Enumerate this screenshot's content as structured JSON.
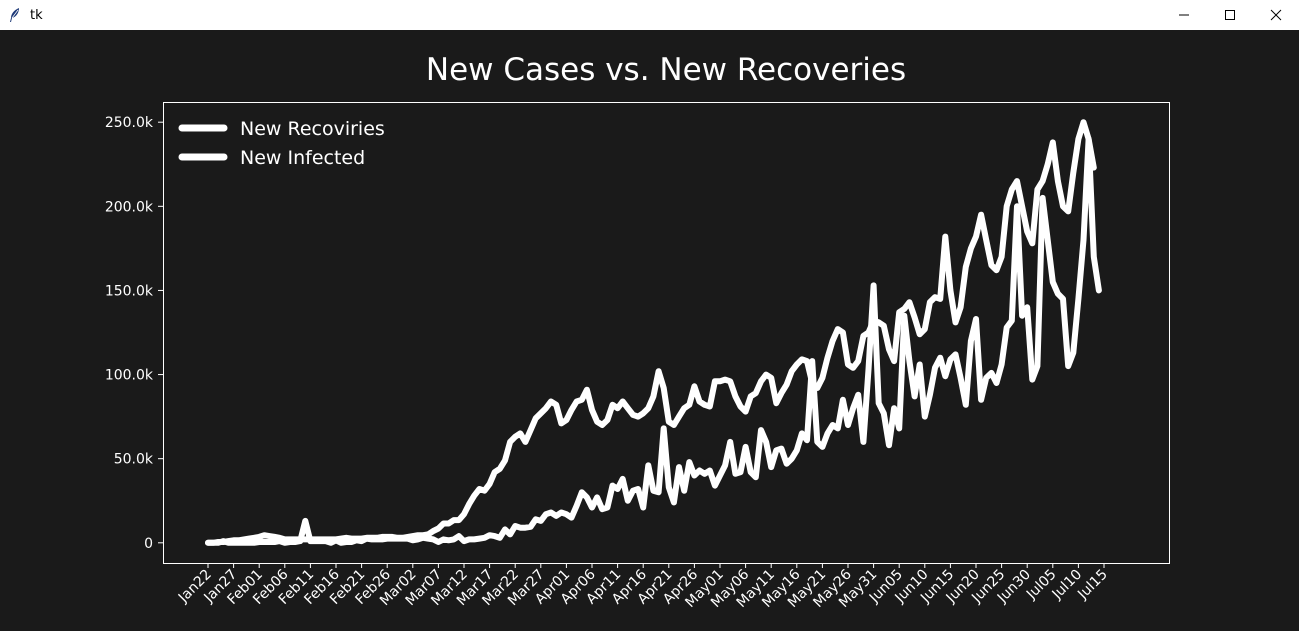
{
  "window": {
    "title": "tk",
    "icons": {
      "app": "feather-icon",
      "minimize": "minimize-icon",
      "maximize": "maximize-icon",
      "close": "close-icon"
    }
  },
  "colors": {
    "background": "#1a1a1a",
    "foreground": "#ffffff",
    "titlebar": "#ffffff"
  },
  "chart_data": {
    "type": "line",
    "title": "New Cases vs. New Recoveries",
    "xlabel": "",
    "ylabel": "",
    "x_tick_labels": [
      "Jan22",
      "Jan27",
      "Feb01",
      "Feb06",
      "Feb11",
      "Feb16",
      "Feb21",
      "Feb26",
      "Mar02",
      "Mar07",
      "Mar12",
      "Mar17",
      "Mar22",
      "Mar27",
      "Apr01",
      "Apr06",
      "Apr11",
      "Apr16",
      "Apr21",
      "Apr26",
      "May01",
      "May06",
      "May11",
      "May16",
      "May21",
      "May26",
      "May31",
      "Jun05",
      "Jun10",
      "Jun15",
      "Jun20",
      "Jun25",
      "Jun30",
      "Jul05",
      "Jul10",
      "Jul15"
    ],
    "y_tick_values": [
      0,
      50000,
      100000,
      150000,
      200000,
      250000
    ],
    "y_tick_labels": [
      "0",
      "50.0k",
      "100.0k",
      "150.0k",
      "200.0k",
      "250.0k"
    ],
    "ylim": [
      -12000,
      262000
    ],
    "grid": false,
    "legend_position": "top-left",
    "series": [
      {
        "name": "New Recoviries",
        "values": [
          0,
          0,
          0,
          1000,
          0,
          0,
          0,
          0,
          0,
          0,
          500,
          500,
          500,
          500,
          1000,
          0,
          500,
          500,
          1000,
          13000,
          1000,
          1000,
          1000,
          1000,
          0,
          1500,
          0,
          500,
          500,
          1500,
          1000,
          2500,
          2000,
          2000,
          2000,
          2500,
          2500,
          2500,
          2500,
          2500,
          1500,
          2000,
          3000,
          2500,
          2000,
          500,
          2000,
          1500,
          2000,
          4000,
          1000,
          2000,
          2000,
          2500,
          3000,
          4500,
          4000,
          3000,
          8000,
          5000,
          10000,
          9000,
          9000,
          9500,
          14000,
          13000,
          17000,
          18000,
          16000,
          18000,
          17000,
          15000,
          22000,
          30000,
          27000,
          21000,
          27000,
          20000,
          21000,
          34000,
          32000,
          38000,
          25000,
          31000,
          32000,
          21000,
          46000,
          31000,
          30000,
          68000,
          33000,
          24000,
          45000,
          31000,
          48000,
          40000,
          43000,
          41000,
          43000,
          34000,
          40000,
          46000,
          60000,
          41000,
          42000,
          57000,
          42000,
          39000,
          67000,
          60000,
          45000,
          55000,
          56000,
          47000,
          50000,
          55000,
          65000,
          61000,
          108000,
          60000,
          57000,
          65000,
          70000,
          68000,
          85000,
          70000,
          80000,
          88000,
          60000,
          103000,
          153000,
          83000,
          77000,
          58000,
          80000,
          68000,
          135000,
          108000,
          87000,
          106000,
          75000,
          88000,
          104000,
          110000,
          99000,
          109000,
          112000,
          98000,
          82000,
          120000,
          133000,
          85000,
          98000,
          101000,
          95000,
          106000,
          128000,
          132000,
          200000,
          135000,
          140000,
          97000,
          105000,
          205000,
          180000,
          155000,
          148000,
          145000,
          105000,
          113000,
          145000,
          180000,
          240000,
          170000,
          150000
        ]
      },
      {
        "name": "New Infected",
        "values": [
          0,
          0,
          500,
          500,
          1000,
          1500,
          1500,
          2000,
          2500,
          3000,
          3500,
          4500,
          4000,
          3500,
          3000,
          2000,
          2000,
          2000,
          2000,
          2000,
          2000,
          2000,
          2000,
          2000,
          2000,
          2000,
          2500,
          3000,
          2500,
          2500,
          2500,
          3000,
          3000,
          3000,
          3500,
          3500,
          3500,
          3000,
          3000,
          3500,
          4000,
          4500,
          4500,
          5000,
          7000,
          8500,
          11500,
          11500,
          13500,
          13500,
          17000,
          23000,
          28000,
          32000,
          31000,
          35000,
          42000,
          44000,
          49000,
          60000,
          63000,
          65000,
          60000,
          67000,
          74000,
          77000,
          80000,
          84000,
          82000,
          71000,
          73000,
          79000,
          84000,
          85000,
          91000,
          79000,
          72000,
          70000,
          73000,
          82000,
          80000,
          84000,
          80000,
          76000,
          75000,
          77000,
          80000,
          87000,
          102000,
          92000,
          72000,
          70000,
          75000,
          80000,
          82000,
          93000,
          84000,
          82000,
          81000,
          96000,
          96000,
          97000,
          96000,
          87000,
          81000,
          78000,
          87000,
          89000,
          96000,
          100000,
          98000,
          83000,
          89000,
          94000,
          102000,
          106000,
          109000,
          108000,
          95000,
          92000,
          98000,
          110000,
          120000,
          127000,
          125000,
          106000,
          104000,
          108000,
          123000,
          125000,
          132000,
          131000,
          129000,
          115000,
          108000,
          137000,
          139000,
          143000,
          134000,
          124000,
          127000,
          143000,
          146000,
          145000,
          182000,
          150000,
          131000,
          140000,
          164000,
          175000,
          182000,
          195000,
          180000,
          165000,
          162000,
          170000,
          200000,
          210000,
          215000,
          200000,
          185000,
          178000,
          210000,
          215000,
          225000,
          238000,
          215000,
          200000,
          197000,
          220000,
          240000,
          250000,
          240000,
          223000
        ]
      }
    ]
  }
}
